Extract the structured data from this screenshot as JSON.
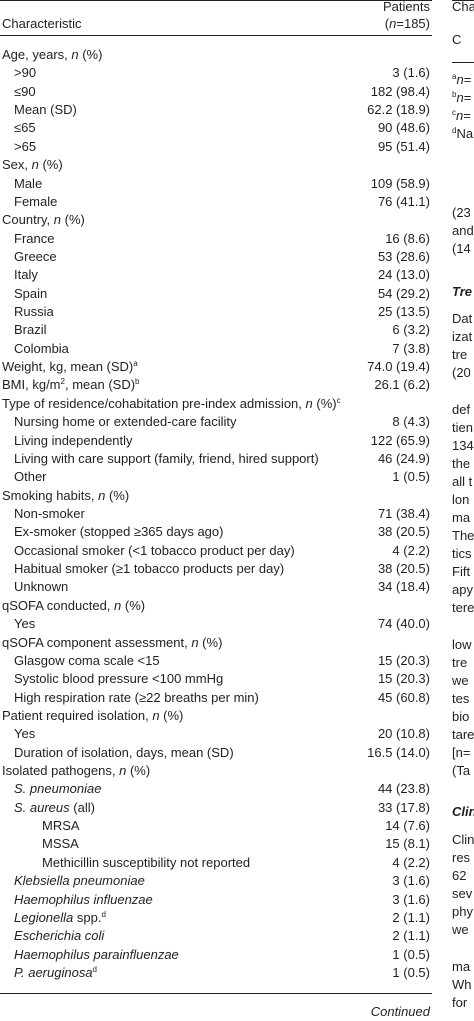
{
  "table": {
    "header": {
      "characteristic": "Characteristic",
      "patients": "Patients",
      "n_label": [
        "(",
        {
          "text": "n",
          "style": "italic"
        },
        "=185)"
      ]
    },
    "groups": [
      {
        "label": [
          "Age, years, ",
          {
            "text": "n",
            "style": "italic"
          },
          " (%)"
        ],
        "items": [
          {
            "label": [
              ">90"
            ],
            "value": "3 (1.6)"
          },
          {
            "label": [
              "≤90"
            ],
            "value": "182 (98.4)"
          },
          {
            "label": [
              "Mean (SD)"
            ],
            "value": "62.2 (18.9)"
          },
          {
            "label": [
              "≤65"
            ],
            "value": "90 (48.6)"
          },
          {
            "label": [
              ">65"
            ],
            "value": "95 (51.4)"
          }
        ]
      },
      {
        "label": [
          "Sex, ",
          {
            "text": "n",
            "style": "italic"
          },
          " (%)"
        ],
        "items": [
          {
            "label": [
              "Male"
            ],
            "value": "109 (58.9)"
          },
          {
            "label": [
              "Female"
            ],
            "value": "76 (41.1)"
          }
        ]
      },
      {
        "label": [
          "Country, ",
          {
            "text": "n",
            "style": "italic"
          },
          " (%)"
        ],
        "items": [
          {
            "label": [
              "France"
            ],
            "value": "16 (8.6)"
          },
          {
            "label": [
              "Greece"
            ],
            "value": "53 (28.6)"
          },
          {
            "label": [
              "Italy"
            ],
            "value": "24 (13.0)"
          },
          {
            "label": [
              "Spain"
            ],
            "value": "54 (29.2)"
          },
          {
            "label": [
              "Russia"
            ],
            "value": "25 (13.5)"
          },
          {
            "label": [
              "Brazil"
            ],
            "value": "6 (3.2)"
          },
          {
            "label": [
              "Colombia"
            ],
            "value": "7 (3.8)"
          }
        ]
      },
      {
        "label": [
          "Weight, kg, mean (SD)",
          {
            "text": "a",
            "style": "sup"
          }
        ],
        "value": "74.0 (19.4)"
      },
      {
        "label": [
          "BMI, kg/m",
          {
            "text": "2",
            "style": "sup"
          },
          ", mean (SD)",
          {
            "text": "b",
            "style": "sup"
          }
        ],
        "value": "26.1 (6.2)"
      },
      {
        "label": [
          "Type of residence/cohabitation pre-index admission, ",
          {
            "text": "n",
            "style": "italic"
          },
          " (%)",
          {
            "text": "c",
            "style": "sup"
          }
        ],
        "items": [
          {
            "label": [
              "Nursing home or extended-care facility"
            ],
            "value": "8 (4.3)"
          },
          {
            "label": [
              "Living independently"
            ],
            "value": "122 (65.9)"
          },
          {
            "label": [
              "Living with care support (family, friend, hired support)"
            ],
            "value": "46 (24.9)"
          },
          {
            "label": [
              "Other"
            ],
            "value": "1 (0.5)"
          }
        ]
      },
      {
        "label": [
          "Smoking habits, ",
          {
            "text": "n",
            "style": "italic"
          },
          " (%)"
        ],
        "items": [
          {
            "label": [
              "Non-smoker"
            ],
            "value": "71 (38.4)"
          },
          {
            "label": [
              "Ex-smoker (stopped ≥365 days ago)"
            ],
            "value": "38 (20.5)"
          },
          {
            "label": [
              "Occasional smoker (<1 tobacco product per day)"
            ],
            "value": "4 (2.2)"
          },
          {
            "label": [
              "Habitual smoker (≥1 tobacco products per day)"
            ],
            "value": "38 (20.5)"
          },
          {
            "label": [
              "Unknown"
            ],
            "value": "34 (18.4)"
          }
        ]
      },
      {
        "label": [
          "qSOFA conducted, ",
          {
            "text": "n",
            "style": "italic"
          },
          " (%)"
        ],
        "items": [
          {
            "label": [
              "Yes"
            ],
            "value": "74 (40.0)"
          }
        ]
      },
      {
        "label": [
          "qSOFA component assessment, ",
          {
            "text": "n",
            "style": "italic"
          },
          " (%)"
        ],
        "items": [
          {
            "label": [
              "Glasgow coma scale <15"
            ],
            "value": "15 (20.3)"
          },
          {
            "label": [
              "Systolic blood pressure <100 mmHg"
            ],
            "value": "15 (20.3)"
          },
          {
            "label": [
              "High respiration rate (≥22 breaths per min)"
            ],
            "value": "45 (60.8)"
          }
        ]
      },
      {
        "label": [
          "Patient required isolation, ",
          {
            "text": "n",
            "style": "italic"
          },
          " (%)"
        ],
        "items": [
          {
            "label": [
              "Yes"
            ],
            "value": "20 (10.8)"
          },
          {
            "label": [
              "Duration of isolation, days, mean (SD)"
            ],
            "value": "16.5 (14.0)"
          }
        ]
      },
      {
        "label": [
          "Isolated pathogens, ",
          {
            "text": "n",
            "style": "italic"
          },
          " (%)"
        ],
        "items": [
          {
            "label": [
              {
                "text": "S. pneumoniae",
                "style": "italic"
              }
            ],
            "value": "44 (23.8)"
          },
          {
            "label": [
              {
                "text": "S. aureus",
                "style": "italic"
              },
              " (all)"
            ],
            "value": "33 (17.8)",
            "items": [
              {
                "label": [
                  "MRSA"
                ],
                "value": "14 (7.6)"
              },
              {
                "label": [
                  "MSSA"
                ],
                "value": "15 (8.1)"
              },
              {
                "label": [
                  "Methicillin susceptibility not reported"
                ],
                "value": "4 (2.2)"
              }
            ]
          },
          {
            "label": [
              {
                "text": "Klebsiella pneumoniae",
                "style": "italic"
              }
            ],
            "value": "3 (1.6)"
          },
          {
            "label": [
              {
                "text": "Haemophilus influenzae",
                "style": "italic"
              }
            ],
            "value": "3 (1.6)"
          },
          {
            "label": [
              {
                "text": "Legionella",
                "style": "italic"
              },
              " spp.",
              {
                "text": "d",
                "style": "sup"
              }
            ],
            "value": "2 (1.1)"
          },
          {
            "label": [
              {
                "text": "Escherichia coli",
                "style": "italic"
              }
            ],
            "value": "2 (1.1)"
          },
          {
            "label": [
              {
                "text": "Haemophilus parainfluenzae",
                "style": "italic"
              }
            ],
            "value": "1 (0.5)"
          },
          {
            "label": [
              {
                "text": "P. aeruginosa",
                "style": "italic"
              },
              {
                "text": "d",
                "style": "sup"
              }
            ],
            "value": "1 (0.5)"
          }
        ]
      }
    ],
    "footer": "Continued"
  },
  "side_column": {
    "lines": [
      [
        "Cha"
      ],
      [
        "C"
      ],
      [
        {
          "text": "a",
          "style": "sup"
        },
        {
          "text": "n",
          "style": "italic"
        },
        "="
      ],
      [
        {
          "text": "b",
          "style": "sup"
        },
        {
          "text": "n",
          "style": "italic"
        },
        "="
      ],
      [
        {
          "text": "c",
          "style": "sup"
        },
        {
          "text": "n",
          "style": "italic"
        },
        "="
      ],
      [
        {
          "text": "d",
          "style": "sup"
        },
        "Na"
      ],
      [
        "(23"
      ],
      [
        "and"
      ],
      [
        "(14"
      ],
      [
        {
          "text": "Tre",
          "style": "bold-italic"
        }
      ],
      [
        "Dat"
      ],
      [
        "izat"
      ],
      [
        "tre"
      ],
      [
        "(20"
      ],
      [
        "def"
      ],
      [
        "tien"
      ],
      [
        "134"
      ],
      [
        "the"
      ],
      [
        "all t"
      ],
      [
        "lon"
      ],
      [
        "ma"
      ],
      [
        "The"
      ],
      [
        "tics"
      ],
      [
        "Fift"
      ],
      [
        "apy"
      ],
      [
        "tere"
      ],
      [
        "low"
      ],
      [
        "tre"
      ],
      [
        "we"
      ],
      [
        "tes"
      ],
      [
        "bio"
      ],
      [
        "tare"
      ],
      [
        "[n="
      ],
      [
        "(Ta"
      ],
      [
        {
          "text": "Clin",
          "style": "bold-italic"
        }
      ],
      [
        "Clin"
      ],
      [
        "res"
      ],
      [
        "62"
      ],
      [
        "sev"
      ],
      [
        "phy"
      ],
      [
        "we"
      ],
      [
        "ma"
      ],
      [
        "Wh"
      ],
      [
        "for"
      ]
    ]
  }
}
